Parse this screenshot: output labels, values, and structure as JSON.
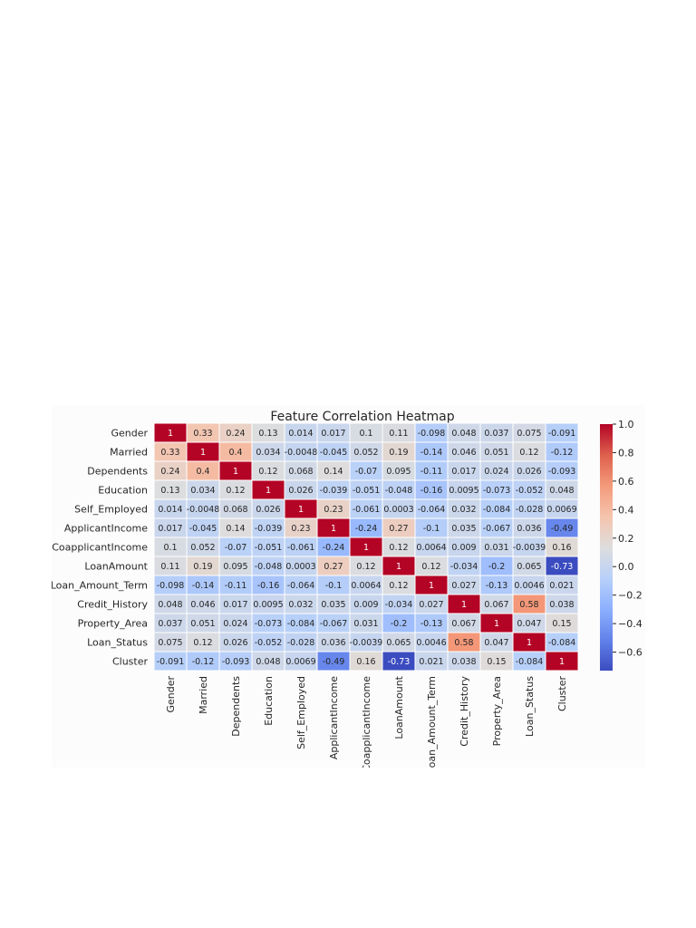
{
  "chart_data": {
    "type": "heatmap",
    "title": "Feature Correlation Heatmap",
    "labels": [
      "Gender",
      "Married",
      "Dependents",
      "Education",
      "Self_Employed",
      "ApplicantIncome",
      "CoapplicantIncome",
      "LoanAmount",
      "Loan_Amount_Term",
      "Credit_History",
      "Property_Area",
      "Loan_Status",
      "Cluster"
    ],
    "values": [
      [
        "1",
        "0.33",
        "0.24",
        "0.13",
        "0.014",
        "0.017",
        "0.1",
        "0.11",
        "-0.098",
        "0.048",
        "0.037",
        "0.075",
        "-0.091"
      ],
      [
        "0.33",
        "1",
        "0.4",
        "0.034",
        "-0.0048",
        "-0.045",
        "0.052",
        "0.19",
        "-0.14",
        "0.046",
        "0.051",
        "0.12",
        "-0.12"
      ],
      [
        "0.24",
        "0.4",
        "1",
        "0.12",
        "0.068",
        "0.14",
        "-0.07",
        "0.095",
        "-0.11",
        "0.017",
        "0.024",
        "0.026",
        "-0.093"
      ],
      [
        "0.13",
        "0.034",
        "0.12",
        "1",
        "0.026",
        "-0.039",
        "-0.051",
        "-0.048",
        "-0.16",
        "0.0095",
        "-0.073",
        "-0.052",
        "0.048"
      ],
      [
        "0.014",
        "-0.0048",
        "0.068",
        "0.026",
        "1",
        "0.23",
        "-0.061",
        "0.0003",
        "-0.064",
        "0.032",
        "-0.084",
        "-0.028",
        "0.0069"
      ],
      [
        "0.017",
        "-0.045",
        "0.14",
        "-0.039",
        "0.23",
        "1",
        "-0.24",
        "0.27",
        "-0.1",
        "0.035",
        "-0.067",
        "0.036",
        "-0.49"
      ],
      [
        "0.1",
        "0.052",
        "-0.07",
        "-0.051",
        "-0.061",
        "-0.24",
        "1",
        "0.12",
        "0.0064",
        "0.009",
        "0.031",
        "-0.0039",
        "0.16"
      ],
      [
        "0.11",
        "0.19",
        "0.095",
        "-0.048",
        "0.0003",
        "0.27",
        "0.12",
        "1",
        "0.12",
        "-0.034",
        "-0.2",
        "0.065",
        "-0.73"
      ],
      [
        "-0.098",
        "-0.14",
        "-0.11",
        "-0.16",
        "-0.064",
        "-0.1",
        "0.0064",
        "0.12",
        "1",
        "0.027",
        "-0.13",
        "0.0046",
        "0.021"
      ],
      [
        "0.048",
        "0.046",
        "0.017",
        "0.0095",
        "0.032",
        "0.035",
        "0.009",
        "-0.034",
        "0.027",
        "1",
        "0.067",
        "0.58",
        "0.038"
      ],
      [
        "0.037",
        "0.051",
        "0.024",
        "-0.073",
        "-0.084",
        "-0.067",
        "0.031",
        "-0.2",
        "-0.13",
        "0.067",
        "1",
        "0.047",
        "0.15"
      ],
      [
        "0.075",
        "0.12",
        "0.026",
        "-0.052",
        "-0.028",
        "0.036",
        "-0.0039",
        "0.065",
        "0.0046",
        "0.58",
        "0.047",
        "1",
        "-0.084"
      ],
      [
        "-0.091",
        "-0.12",
        "-0.093",
        "0.048",
        "0.0069",
        "-0.49",
        "0.16",
        "-0.73",
        "0.021",
        "0.038",
        "0.15",
        "-0.084",
        "1"
      ]
    ],
    "colormap": "coolwarm",
    "color_range": [
      -0.73,
      1.0
    ],
    "colorbar_ticks": [
      "1.0",
      "0.8",
      "0.6",
      "0.4",
      "0.2",
      "0.0",
      "−0.2",
      "−0.4",
      "−0.6"
    ],
    "colorbar_tick_values": [
      1.0,
      0.8,
      0.6,
      0.4,
      0.2,
      0.0,
      -0.2,
      -0.4,
      -0.6
    ],
    "annotations": true,
    "grid": false
  }
}
